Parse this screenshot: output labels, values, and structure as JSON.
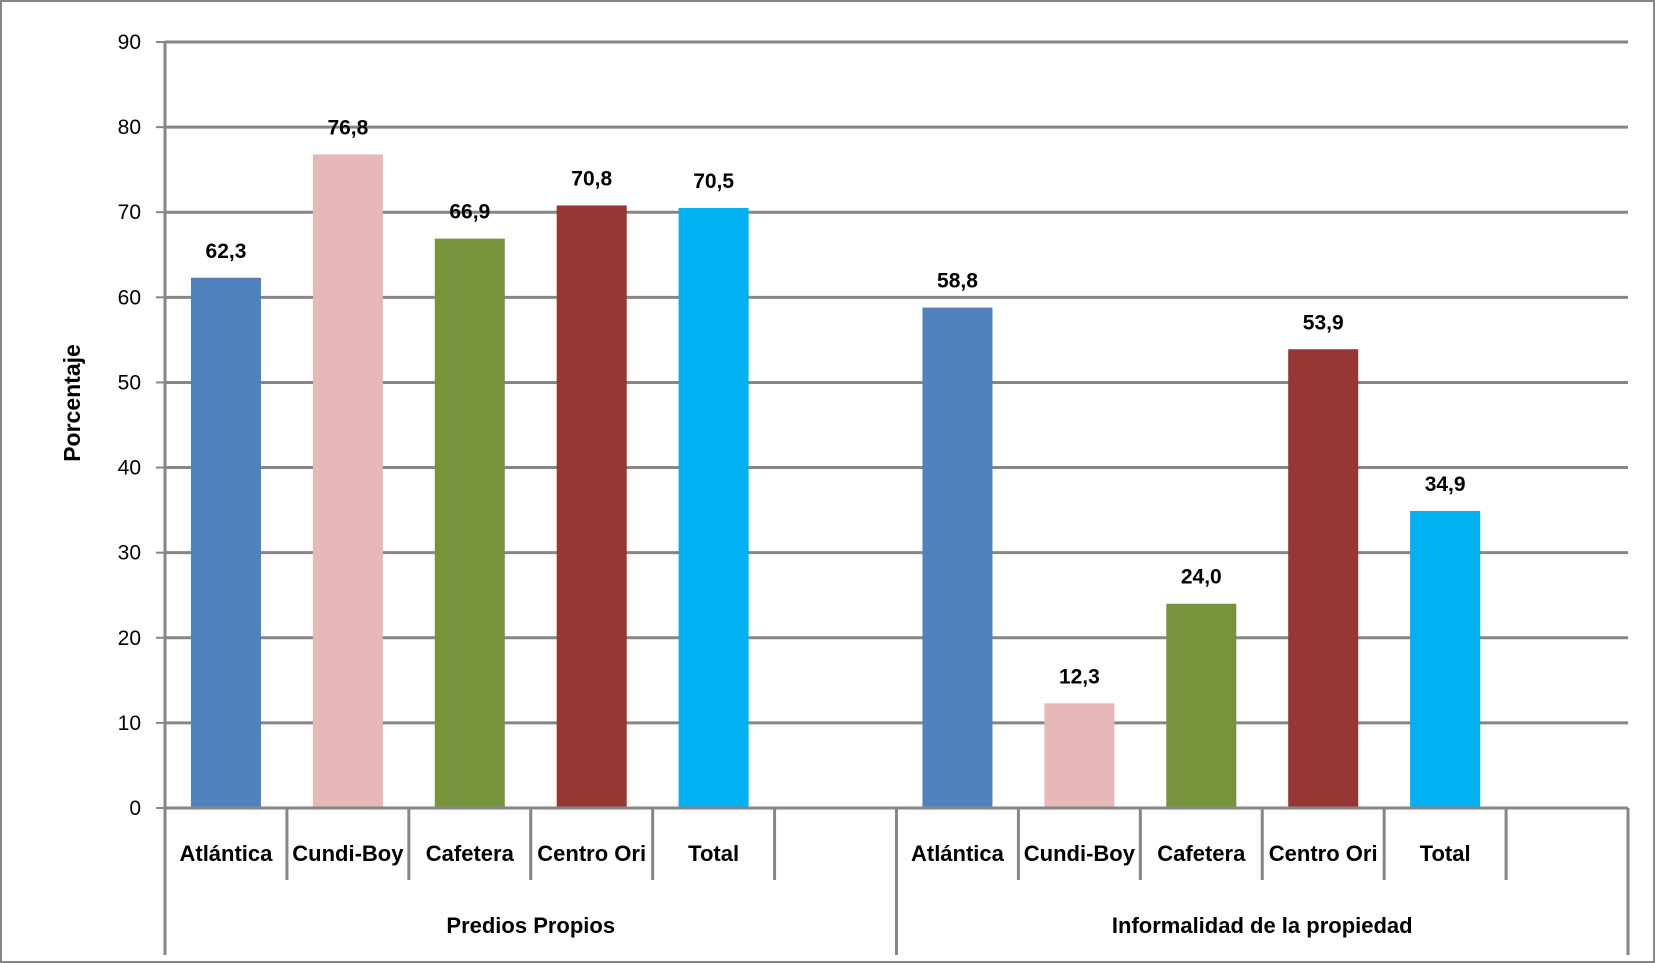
{
  "chart_data": {
    "type": "bar",
    "ylabel": "Porcentaje",
    "xlabel": "",
    "ylim": [
      0,
      90
    ],
    "ytick_step": 10,
    "grid": true,
    "groups": [
      {
        "label": "Predios Propios",
        "categories": [
          "Atlántica",
          "Cundi-Boy",
          "Cafetera",
          "Centro Ori",
          "Total"
        ],
        "values": [
          62.3,
          76.8,
          66.9,
          70.8,
          70.5
        ],
        "value_labels": [
          "62,3",
          "76,8",
          "66,9",
          "70,8",
          "70,5"
        ]
      },
      {
        "label": "Informalidad de la propiedad",
        "categories": [
          "Atlántica",
          "Cundi-Boy",
          "Cafetera",
          "Centro Ori",
          "Total"
        ],
        "values": [
          58.8,
          12.3,
          24.0,
          53.9,
          34.9
        ],
        "value_labels": [
          "58,8",
          "12,3",
          "24,0",
          "53,9",
          "34,9"
        ]
      }
    ],
    "colors": [
      "#4f81bd",
      "#e6b9b8",
      "#77933c",
      "#953735",
      "#00b0f0"
    ]
  }
}
